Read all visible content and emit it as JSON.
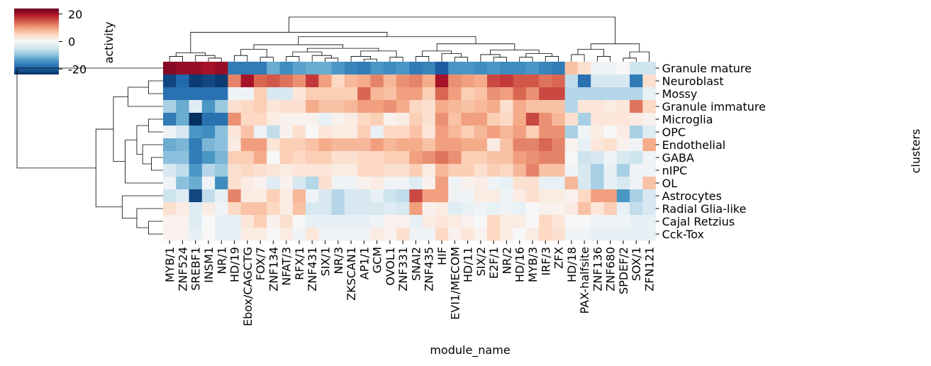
{
  "chart_data": {
    "type": "heatmap",
    "xlabel": "module_name",
    "ylabel": "clusters",
    "colorbar": {
      "label": "activity",
      "ticks": [
        20,
        0,
        -20
      ],
      "vmin": -24,
      "vmax": 24
    },
    "colormap": {
      "low": "#053061",
      "mid": "#f7f7f7",
      "high": "#67001f"
    },
    "rows": [
      "Granule mature",
      "Neuroblast",
      "Mossy",
      "Granule immature",
      "Microglia",
      "OPC",
      "Endothelial",
      "GABA",
      "nIPC",
      "OL",
      "Astrocytes",
      "Radial Glia-like",
      "Cajal Retzius",
      "Cck-Tox"
    ],
    "columns": [
      "MYB/1",
      "ZNF524",
      "SREBF1",
      "INSM1",
      "NR/1",
      "HD/19",
      "Ebox/CAGCTG",
      "FOX/7",
      "ZNF134",
      "NFAT/3",
      "RFX/1",
      "ZNF431",
      "SIX/1",
      "NR/3",
      "ZKSCAN1",
      "AP1/1",
      "GCM",
      "OVOL1",
      "ZNF331",
      "SNAI2",
      "ZNF435",
      "HIF",
      "EVI1/MECOM",
      "HD/11",
      "SIX/2",
      "E2F/1",
      "NR/2",
      "HD/16",
      "MYB/3",
      "IRF/3",
      "ZFX",
      "HD/18",
      "PAX-halfsite",
      "ZNF136",
      "ZNF680",
      "SPDEF/2",
      "SOX/1",
      "ZFN121"
    ],
    "values": [
      [
        22,
        21,
        21,
        20,
        21,
        -17,
        -17,
        -17,
        -12,
        -15,
        -13,
        -12,
        -12,
        -14,
        -16,
        -17,
        -14,
        -15,
        -14,
        -17,
        -16,
        -20,
        -14,
        -14,
        -15,
        -14,
        -15,
        -15,
        -14,
        -16,
        -17,
        7,
        4,
        -1,
        -1,
        0,
        -5,
        -5
      ],
      [
        -22,
        -19,
        -23,
        -22,
        -23,
        12,
        20,
        14,
        15,
        13,
        11,
        17,
        10,
        5,
        8,
        9,
        12,
        8,
        11,
        12,
        9,
        20,
        11,
        10,
        9,
        16,
        17,
        15,
        15,
        13,
        14,
        -6,
        -18,
        -4,
        -4,
        -4,
        -17,
        4
      ],
      [
        -18,
        -18,
        -18,
        -18,
        -18,
        -1,
        -1,
        6,
        -4,
        -4,
        3,
        6,
        6,
        6,
        6,
        14,
        8,
        7,
        10,
        10,
        6,
        14,
        10,
        6,
        7,
        11,
        10,
        14,
        11,
        16,
        16,
        -7,
        -7,
        -7,
        -7,
        -7,
        -7,
        -2
      ],
      [
        -8,
        -12,
        -3,
        -14,
        -9,
        4,
        5,
        6,
        3,
        4,
        4,
        9,
        7,
        7,
        8,
        10,
        10,
        11,
        9,
        5,
        4,
        9,
        8,
        7,
        8,
        9,
        4,
        9,
        7,
        7,
        7,
        -7,
        3,
        3,
        2,
        3,
        13,
        5
      ],
      [
        -17,
        -12,
        -24,
        -18,
        -18,
        11,
        5,
        5,
        2,
        1,
        1,
        1,
        -2,
        1,
        2,
        5,
        6,
        1,
        2,
        6,
        4,
        11,
        7,
        10,
        10,
        6,
        5,
        9,
        16,
        11,
        8,
        4,
        -8,
        3,
        3,
        3,
        2,
        1
      ],
      [
        -1,
        -4,
        -14,
        -15,
        -10,
        3,
        7,
        -1,
        -6,
        1,
        4,
        0,
        3,
        2,
        2,
        6,
        -2,
        5,
        5,
        7,
        3,
        10,
        8,
        6,
        8,
        10,
        8,
        10,
        6,
        11,
        11,
        -8,
        -1,
        2,
        0,
        2,
        -8,
        -3
      ],
      [
        -12,
        -11,
        -17,
        -11,
        -10,
        2,
        10,
        10,
        3,
        6,
        6,
        7,
        9,
        8,
        8,
        8,
        10,
        8,
        9,
        9,
        7,
        10,
        10,
        9,
        9,
        2,
        7,
        12,
        12,
        14,
        12,
        1,
        -2,
        3,
        4,
        1,
        -1,
        9
      ],
      [
        -10,
        -10,
        -17,
        -14,
        -11,
        6,
        6,
        9,
        0,
        6,
        5,
        6,
        6,
        4,
        4,
        5,
        5,
        6,
        6,
        10,
        11,
        13,
        11,
        6,
        6,
        7,
        7,
        10,
        11,
        12,
        12,
        0,
        -5,
        -4,
        -1,
        -4,
        -5,
        -1
      ],
      [
        -4,
        -6,
        -14,
        -7,
        -9,
        4,
        5,
        4,
        3,
        2,
        3,
        3,
        3,
        2,
        2,
        5,
        5,
        4,
        4,
        6,
        2,
        8,
        6,
        6,
        4,
        6,
        5,
        8,
        12,
        7,
        7,
        -1,
        -4,
        -8,
        -2,
        -8,
        -1,
        -1
      ],
      [
        -1,
        -10,
        -12,
        -1,
        -15,
        4,
        2,
        1,
        -3,
        1,
        -4,
        -7,
        4,
        -1,
        -1,
        1,
        2,
        -1,
        -1,
        -3,
        1,
        10,
        -1,
        1,
        2,
        -1,
        -2,
        4,
        4,
        -2,
        -2,
        8,
        -4,
        -8,
        -2,
        -4,
        -1,
        7
      ],
      [
        -5,
        -3,
        -22,
        -6,
        -2,
        12,
        2,
        2,
        6,
        2,
        8,
        -1,
        -4,
        -7,
        -4,
        -4,
        -2,
        -5,
        -6,
        16,
        10,
        10,
        -1,
        -1,
        2,
        2,
        -1,
        2,
        4,
        2,
        2,
        1,
        5,
        10,
        10,
        -14,
        -8,
        -4
      ],
      [
        4,
        2,
        -3,
        2,
        -1,
        5,
        7,
        7,
        5,
        2,
        7,
        -4,
        -4,
        -7,
        -4,
        -4,
        -4,
        -3,
        -4,
        10,
        1,
        2,
        -3,
        -2,
        -1,
        -2,
        -1,
        -2,
        0,
        1,
        1,
        2,
        7,
        3,
        6,
        -2,
        -6,
        -4
      ],
      [
        1,
        1,
        -3,
        0,
        -2,
        -2,
        3,
        6,
        1,
        4,
        0,
        -2,
        -2,
        -2,
        -2,
        -2,
        -1,
        1,
        1,
        -2,
        2,
        3,
        2,
        1,
        0,
        5,
        2,
        2,
        0,
        5,
        3,
        0,
        0,
        -1,
        -1,
        -1,
        -2,
        -2
      ],
      [
        1,
        1,
        -2,
        0,
        -2,
        -2,
        2,
        2,
        0,
        2,
        -1,
        3,
        -1,
        -1,
        -1,
        -1,
        2,
        1,
        4,
        -1,
        -1,
        5,
        1,
        3,
        1,
        5,
        2,
        0,
        2,
        5,
        4,
        -1,
        -1,
        -2,
        -2,
        -2,
        -2,
        -2
      ]
    ]
  }
}
